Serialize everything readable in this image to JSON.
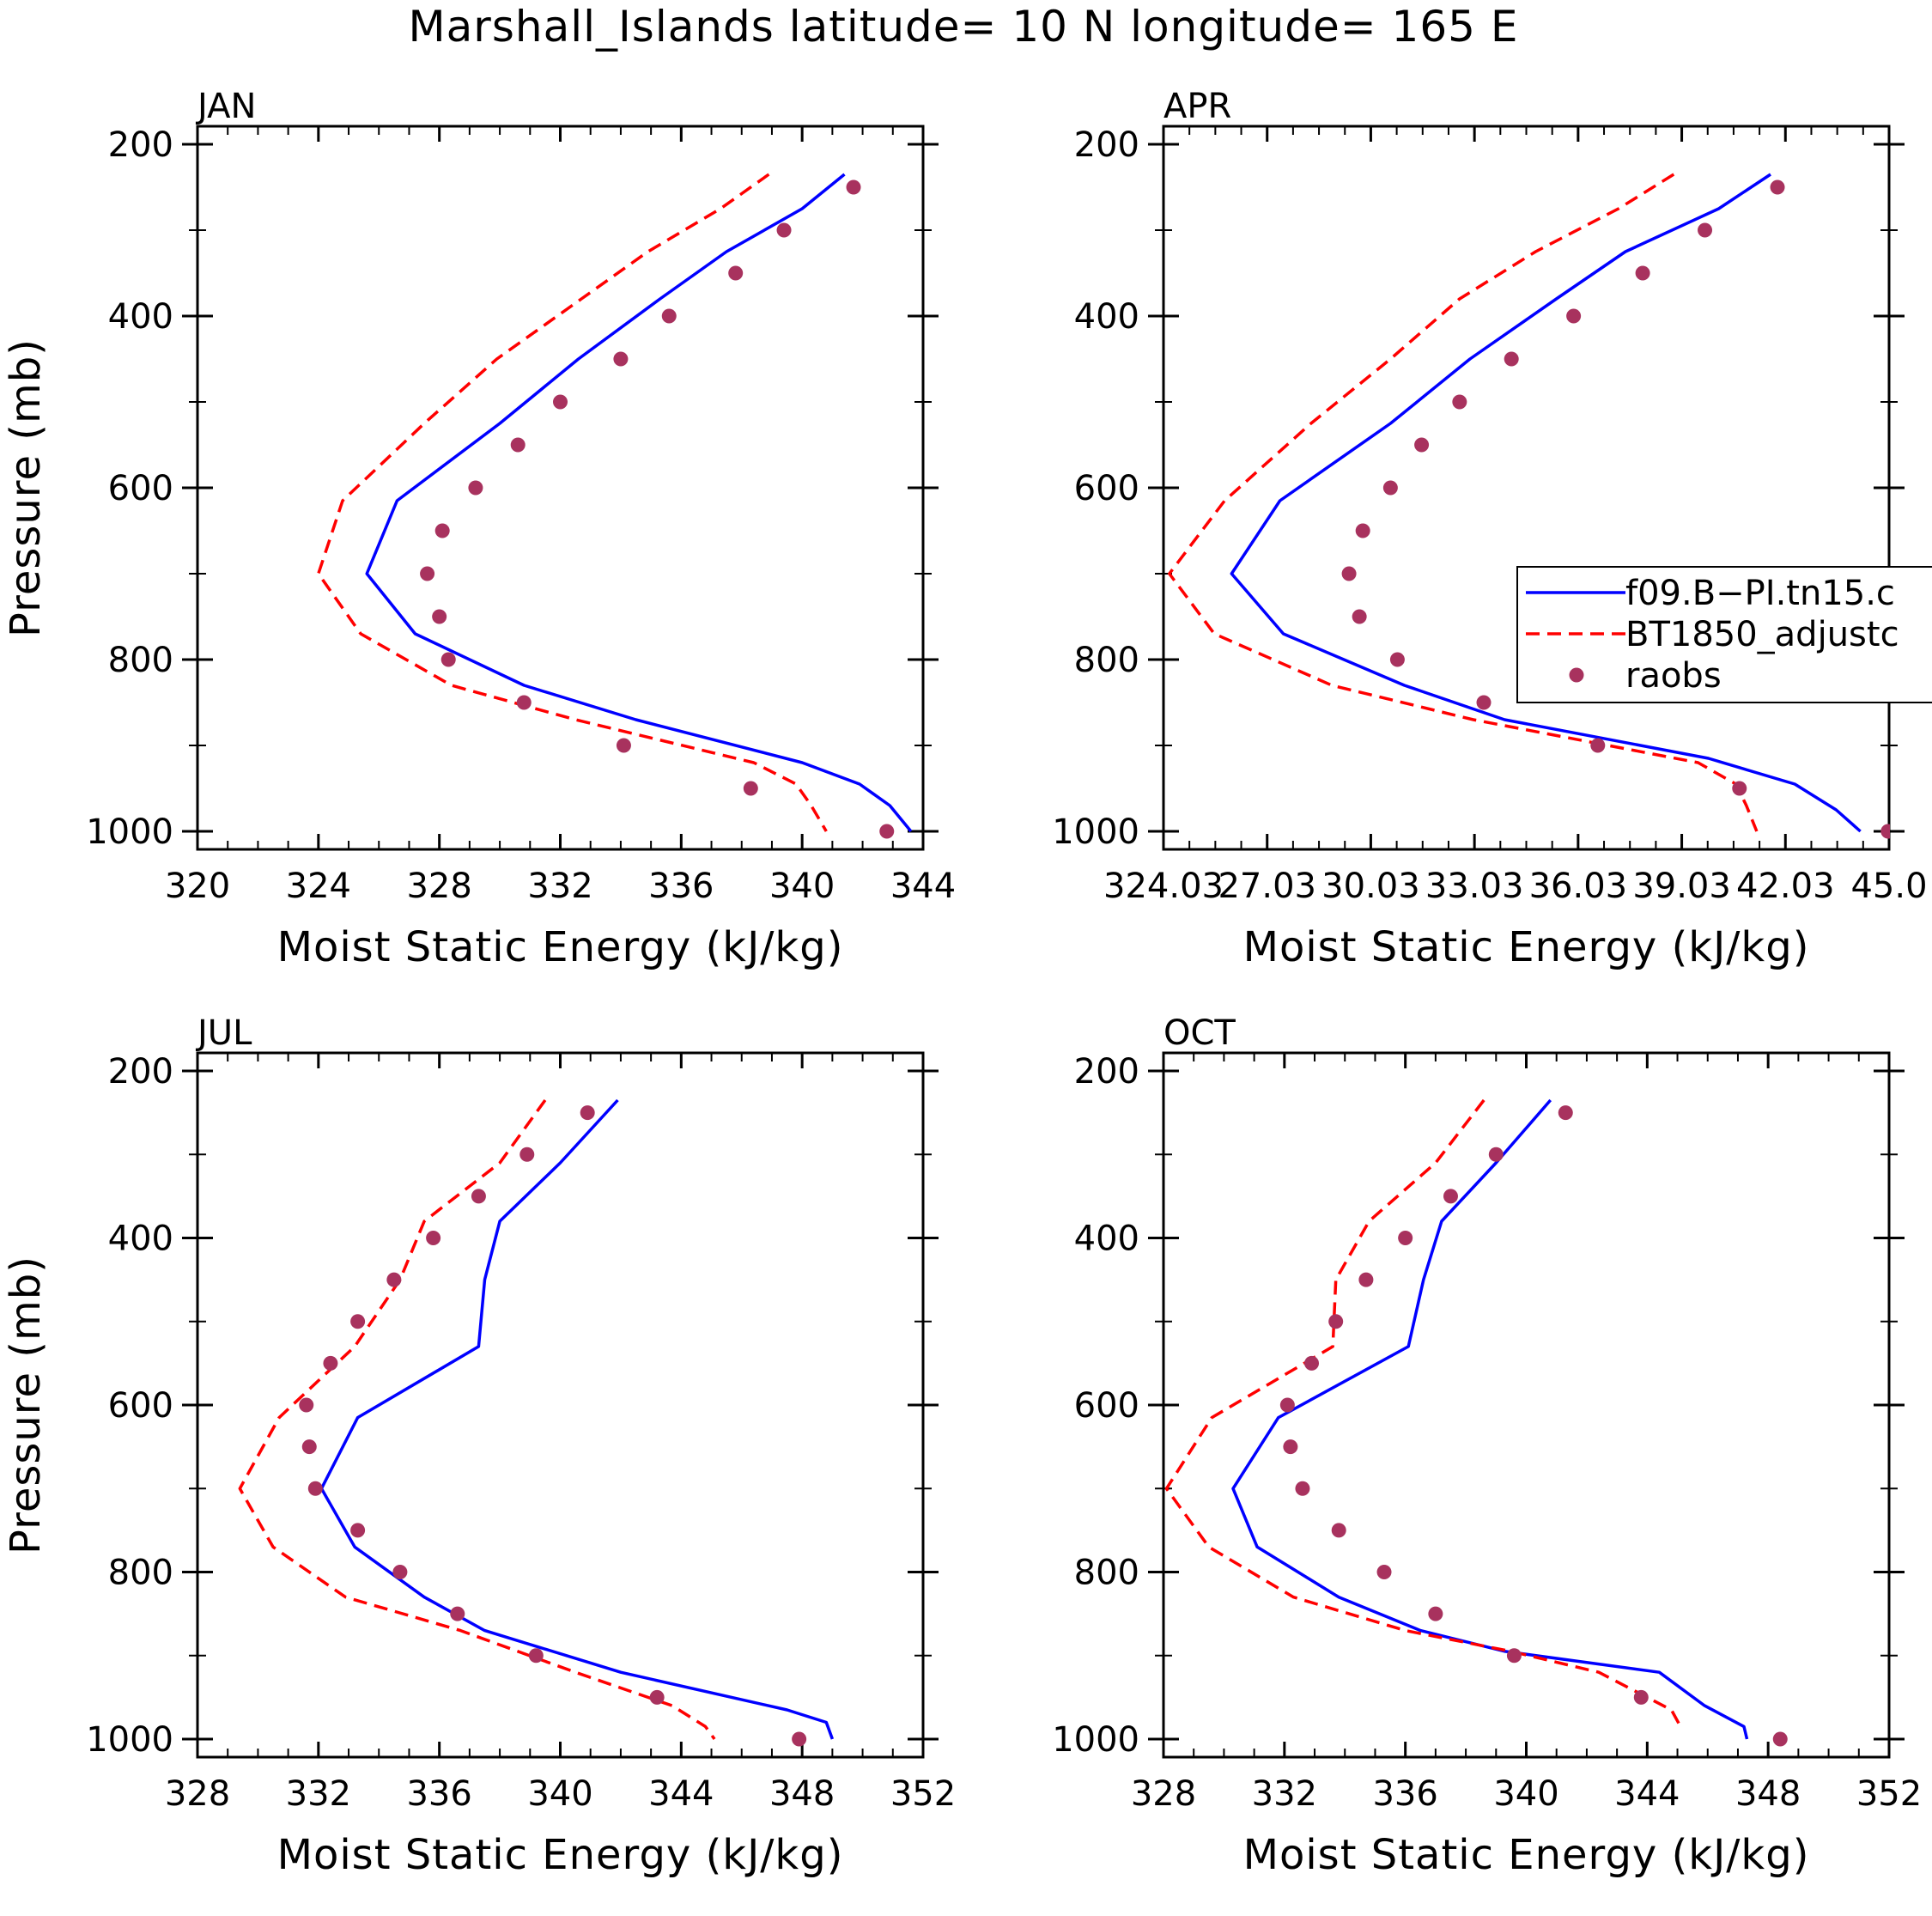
{
  "title": "Marshall_Islands  latitude= 10 N longitude= 165 E",
  "legend": {
    "model_label": "f09.B−PI.tn15.c",
    "adjusted_label": "BT1850_adjustc",
    "obs_label": "raobs"
  },
  "colors": {
    "model": "#0000ff",
    "adjusted": "#ff0000",
    "obs": "#a8325e"
  },
  "chart_data": [
    {
      "type": "line",
      "panel": "JAN",
      "label": "JAN",
      "xlabel": "Moist Static Energy (kJ/kg)",
      "ylabel": "Pressure (mb)",
      "xlim": [
        320,
        344
      ],
      "ylim": [
        1000,
        200
      ],
      "xticks": [
        320,
        324,
        328,
        332,
        336,
        340,
        344
      ],
      "xtick_labels": [
        "320",
        "324",
        "328",
        "332",
        "336",
        "340",
        "344"
      ],
      "yticks": [
        200,
        400,
        600,
        800,
        1000
      ],
      "ytick_labels": [
        "200",
        "400",
        "600",
        "800",
        "1000"
      ],
      "series": [
        {
          "name": "f09.B−PI.tn15.c",
          "style": "solid",
          "x": [
            341.4,
            340.0,
            337.5,
            335.3,
            332.6,
            330.0,
            326.6,
            325.6,
            327.2,
            330.8,
            334.5,
            340.0,
            341.9,
            342.9,
            343.6
          ],
          "y": [
            235,
            275,
            325,
            380,
            450,
            525,
            615,
            700,
            770,
            830,
            870,
            920,
            945,
            970,
            1000
          ]
        },
        {
          "name": "BT1850_adjustc",
          "style": "dashed",
          "x": [
            338.9,
            337.3,
            334.9,
            332.7,
            329.9,
            327.5,
            324.8,
            324.0,
            325.4,
            328.4,
            332.5,
            338.4,
            339.8,
            340.3,
            340.8
          ],
          "y": [
            235,
            275,
            325,
            380,
            450,
            525,
            615,
            700,
            770,
            830,
            870,
            920,
            945,
            970,
            1000
          ]
        },
        {
          "name": "raobs",
          "style": "marker",
          "x": [
            341.7,
            339.4,
            337.8,
            335.6,
            334.0,
            332.0,
            330.6,
            329.2,
            328.1,
            327.6,
            328.0,
            328.3,
            330.8,
            334.1,
            338.3,
            342.8
          ],
          "y": [
            250,
            300,
            350,
            400,
            450,
            500,
            550,
            600,
            650,
            700,
            750,
            800,
            850,
            900,
            950,
            1000
          ]
        }
      ]
    },
    {
      "type": "line",
      "panel": "APR",
      "label": "APR",
      "xlabel": "Moist Static Energy (kJ/kg)",
      "ylabel": "",
      "xlim": [
        324.03,
        345.03
      ],
      "ylim": [
        1000,
        200
      ],
      "xticks": [
        324.03,
        327.03,
        330.03,
        333.03,
        336.03,
        339.03,
        342.03,
        345.03
      ],
      "xtick_labels": [
        "324.03",
        "27.03",
        "30.03",
        "33.03",
        "36.03",
        "39.03",
        "42.03",
        "45.0"
      ],
      "yticks": [
        200,
        400,
        600,
        800,
        1000
      ],
      "ytick_labels": [
        "200",
        "400",
        "600",
        "800",
        "1000"
      ],
      "series": [
        {
          "name": "f09.B−PI.tn15.c",
          "style": "solid",
          "x": [
            341.6,
            340.1,
            337.4,
            335.4,
            332.9,
            330.6,
            327.4,
            326.0,
            327.5,
            331.0,
            333.9,
            339.8,
            342.3,
            343.5,
            344.2
          ],
          "y": [
            235,
            275,
            325,
            380,
            450,
            525,
            615,
            700,
            770,
            830,
            870,
            915,
            945,
            975,
            1000
          ]
        },
        {
          "name": "BT1850_adjustc",
          "style": "dashed",
          "x": [
            338.8,
            337.2,
            334.8,
            332.6,
            330.6,
            328.3,
            325.8,
            324.2,
            325.5,
            328.9,
            333.0,
            339.5,
            340.6,
            340.9,
            341.2
          ],
          "y": [
            235,
            275,
            325,
            380,
            450,
            525,
            615,
            700,
            770,
            830,
            870,
            920,
            945,
            970,
            1000
          ]
        },
        {
          "name": "raobs",
          "style": "marker",
          "x": [
            341.8,
            339.7,
            337.9,
            335.9,
            334.1,
            332.6,
            331.5,
            330.6,
            329.8,
            329.4,
            329.7,
            330.8,
            333.3,
            336.6,
            340.7,
            345.0
          ],
          "y": [
            250,
            300,
            350,
            400,
            450,
            500,
            550,
            600,
            650,
            700,
            750,
            800,
            850,
            900,
            950,
            1000
          ]
        }
      ]
    },
    {
      "type": "line",
      "panel": "JUL",
      "label": "JUL",
      "xlabel": "Moist Static Energy (kJ/kg)",
      "ylabel": "Pressure (mb)",
      "xlim": [
        328,
        352
      ],
      "ylim": [
        1000,
        200
      ],
      "xticks": [
        328,
        332,
        336,
        340,
        344,
        348,
        352
      ],
      "xtick_labels": [
        "328",
        "332",
        "336",
        "340",
        "344",
        "348",
        "352"
      ],
      "yticks": [
        200,
        400,
        600,
        800,
        1000
      ],
      "ytick_labels": [
        "200",
        "400",
        "600",
        "800",
        "1000"
      ],
      "series": [
        {
          "name": "f09.B−PI.tn15.c",
          "style": "solid",
          "x": [
            341.9,
            340.0,
            338.0,
            337.5,
            337.3,
            333.3,
            332.1,
            333.2,
            335.5,
            337.5,
            342.0,
            347.5,
            348.8,
            349.0
          ],
          "y": [
            235,
            310,
            380,
            450,
            530,
            615,
            700,
            770,
            830,
            870,
            920,
            965,
            980,
            1000
          ]
        },
        {
          "name": "BT1850_adjustc",
          "style": "dashed",
          "x": [
            339.5,
            338.0,
            335.5,
            334.7,
            333.2,
            330.7,
            329.4,
            330.5,
            332.9,
            336.7,
            340.5,
            343.7,
            344.8,
            345.1
          ],
          "y": [
            235,
            310,
            380,
            450,
            530,
            615,
            700,
            770,
            830,
            870,
            920,
            960,
            985,
            1000
          ]
        },
        {
          "name": "raobs",
          "style": "marker",
          "x": [
            340.9,
            338.9,
            337.3,
            335.8,
            334.5,
            333.3,
            332.4,
            331.6,
            331.7,
            331.9,
            333.3,
            334.7,
            336.6,
            339.2,
            343.2,
            347.9
          ],
          "y": [
            250,
            300,
            350,
            400,
            450,
            500,
            550,
            600,
            650,
            700,
            750,
            800,
            850,
            900,
            950,
            1000
          ]
        }
      ]
    },
    {
      "type": "line",
      "panel": "OCT",
      "label": "OCT",
      "xlabel": "Moist Static Energy (kJ/kg)",
      "ylabel": "",
      "xlim": [
        328,
        352
      ],
      "ylim": [
        1000,
        200
      ],
      "xticks": [
        328,
        332,
        336,
        340,
        344,
        348,
        352
      ],
      "xtick_labels": [
        "328",
        "332",
        "336",
        "340",
        "344",
        "348",
        "352"
      ],
      "yticks": [
        200,
        400,
        600,
        800,
        1000
      ],
      "ytick_labels": [
        "200",
        "400",
        "600",
        "800",
        "1000"
      ],
      "series": [
        {
          "name": "f09.B−PI.tn15.c",
          "style": "solid",
          "x": [
            340.8,
            339.0,
            337.2,
            336.6,
            336.1,
            331.8,
            330.3,
            331.1,
            333.8,
            336.5,
            339.3,
            344.4,
            345.9,
            347.2,
            347.3
          ],
          "y": [
            235,
            310,
            380,
            450,
            530,
            615,
            700,
            770,
            830,
            870,
            895,
            920,
            960,
            985,
            1000
          ]
        },
        {
          "name": "BT1850_adjustc",
          "style": "dashed",
          "x": [
            338.6,
            337.0,
            334.8,
            333.7,
            333.6,
            329.6,
            328.1,
            329.5,
            332.3,
            336.0,
            339.5,
            342.4,
            344.8,
            345.1
          ],
          "y": [
            235,
            310,
            380,
            450,
            530,
            615,
            700,
            770,
            830,
            870,
            895,
            920,
            965,
            985
          ]
        },
        {
          "name": "raobs",
          "style": "marker",
          "x": [
            341.3,
            339.0,
            337.5,
            336.0,
            334.7,
            333.7,
            332.9,
            332.1,
            332.2,
            332.6,
            333.8,
            335.3,
            337.0,
            339.6,
            343.8,
            348.4
          ],
          "y": [
            250,
            300,
            350,
            400,
            450,
            500,
            550,
            600,
            650,
            700,
            750,
            800,
            850,
            900,
            950,
            1000
          ]
        }
      ]
    }
  ]
}
